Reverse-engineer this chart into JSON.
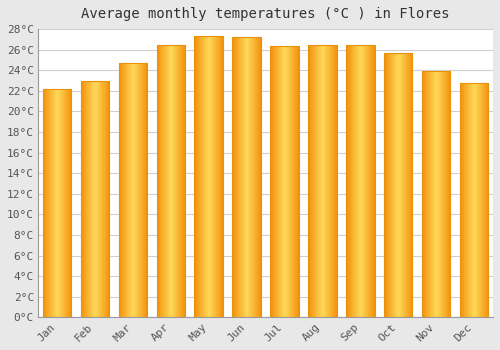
{
  "title": "Average monthly temperatures (°C ) in Flores",
  "months": [
    "Jan",
    "Feb",
    "Mar",
    "Apr",
    "May",
    "Jun",
    "Jul",
    "Aug",
    "Sep",
    "Oct",
    "Nov",
    "Dec"
  ],
  "values": [
    22.2,
    23.0,
    24.7,
    26.5,
    27.3,
    27.2,
    26.4,
    26.5,
    26.5,
    25.7,
    23.9,
    22.8
  ],
  "bar_color_center": "#FFD966",
  "bar_color_edge": "#E8920A",
  "ylim": [
    0,
    28
  ],
  "ytick_step": 2,
  "plot_bg_color": "#ffffff",
  "fig_bg_color": "#e8e8e8",
  "grid_color": "#d0d0d0",
  "title_fontsize": 10,
  "tick_fontsize": 8
}
